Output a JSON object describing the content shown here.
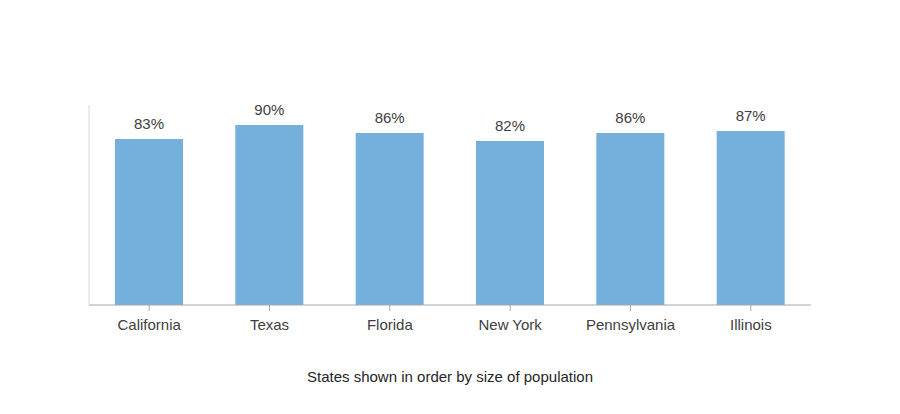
{
  "chart_data": {
    "type": "bar",
    "x_label": "States shown in order by size of population",
    "categories": [
      "California",
      "Texas",
      "Florida",
      "New York",
      "Pennsylvania",
      "Illinois"
    ],
    "values": [
      83,
      90,
      86,
      82,
      86,
      87
    ],
    "value_labels": [
      "83%",
      "90%",
      "86%",
      "82%",
      "86%",
      "87%"
    ],
    "data_labels": true,
    "color": "#75afdc",
    "ylim": [
      0,
      100
    ],
    "tick_labels": "x",
    "grid": false
  }
}
